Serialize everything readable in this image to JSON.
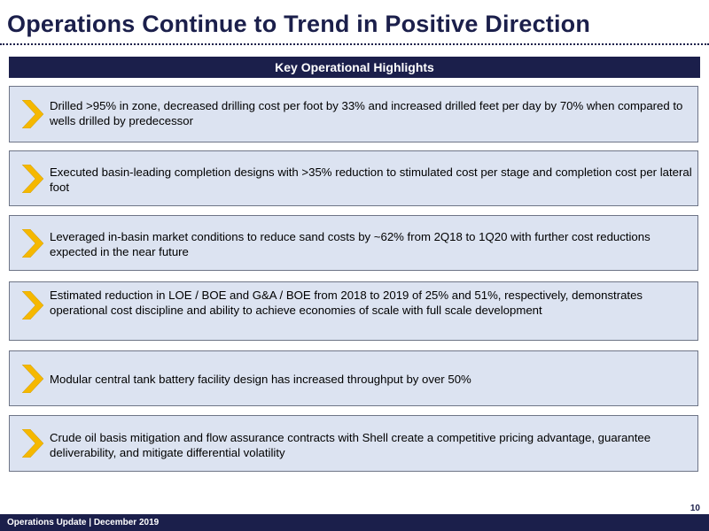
{
  "title": "Operations Continue to Trend in Positive Direction",
  "banner": "Key Operational Highlights",
  "highlights": [
    "Drilled >95% in zone, decreased drilling cost per foot by 33% and increased drilled feet per day by 70% when compared to wells drilled by predecessor",
    "Executed basin-leading completion designs with >35% reduction to stimulated cost per stage and completion cost per lateral foot",
    "Leveraged in-basin market conditions to reduce sand costs by ~62% from 2Q18 to 1Q20 with further cost reductions expected in the near future",
    "Estimated reduction in LOE / BOE and G&A / BOE from 2018 to 2019 of 25% and 51%, respectively, demonstrates operational cost discipline and ability to achieve economies of scale with full scale development",
    "Modular central tank battery facility design has increased throughput by over 50%",
    "Crude oil basis mitigation and flow assurance contracts with Shell create a competitive pricing advantage, guarantee deliverability, and mitigate differential volatility"
  ],
  "footer": "Operations Update  |  December 2019",
  "page_number": "10",
  "colors": {
    "navy": "#1b1f4b",
    "box_fill": "#dce3f1",
    "chevron": "#f5b800"
  },
  "icon": "chevron-right-icon"
}
